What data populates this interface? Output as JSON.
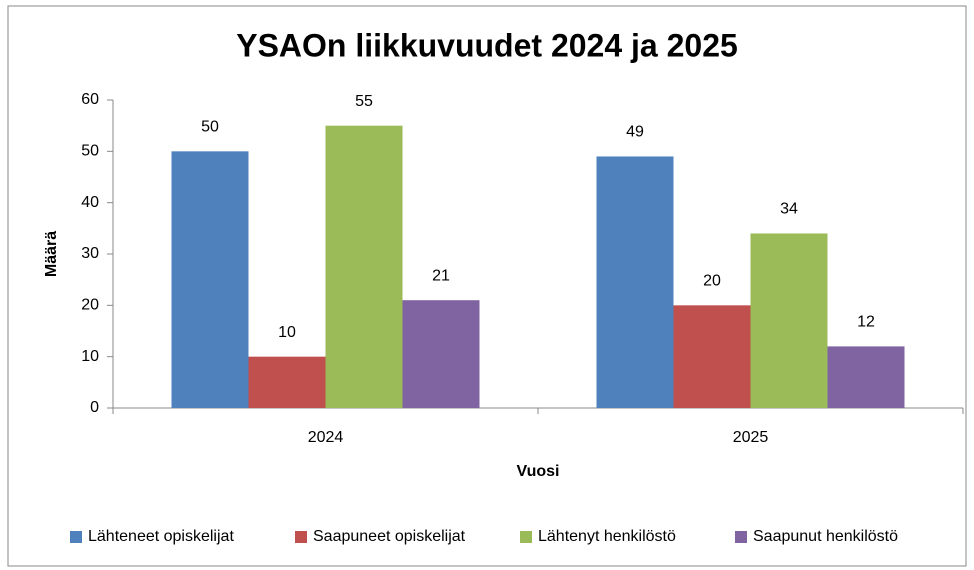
{
  "chart_data": {
    "type": "bar",
    "title": "YSAOn liikkuvuudet 2024 ja 2025",
    "categories": [
      "2024",
      "2025"
    ],
    "series": [
      {
        "name": "Lähteneet opiskelijat",
        "color": "#4f81bd",
        "values": [
          50,
          49
        ]
      },
      {
        "name": "Saapuneet opiskelijat",
        "color": "#c0504d",
        "values": [
          10,
          20
        ]
      },
      {
        "name": "Lähtenyt henkilöstö",
        "color": "#9bbb59",
        "values": [
          55,
          34
        ]
      },
      {
        "name": "Saapunut henkilöstö",
        "color": "#8064a2",
        "values": [
          21,
          12
        ]
      }
    ],
    "ylabel": "Määrä",
    "xlabel": "Vuosi",
    "ylim": [
      0,
      60
    ],
    "yticks": [
      0,
      10,
      20,
      30,
      40,
      50,
      60
    ],
    "grid": false,
    "legend": "bottom"
  }
}
